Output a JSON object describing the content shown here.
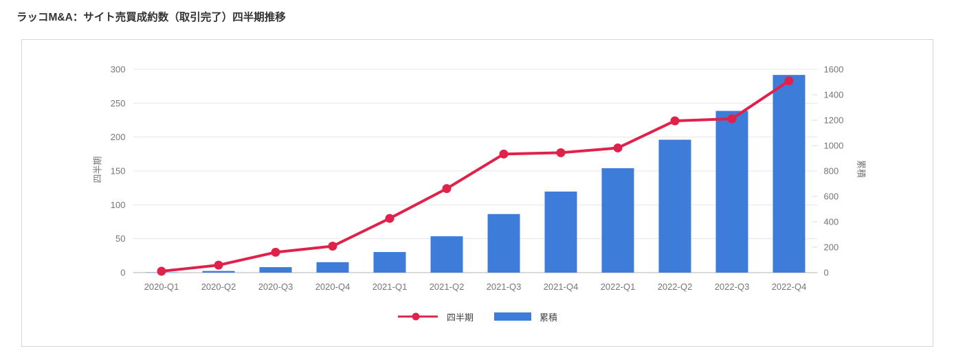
{
  "page": {
    "title": "ラッコM&A：サイト売買成約数（取引完了）四半期推移"
  },
  "chart_data": {
    "type": "combo",
    "title": "ラッコM&A：サイト売買成約数（取引完了）四半期推移",
    "categories": [
      "2020-Q1",
      "2020-Q2",
      "2020-Q3",
      "2020-Q4",
      "2021-Q1",
      "2021-Q2",
      "2021-Q3",
      "2021-Q4",
      "2022-Q1",
      "2022-Q2",
      "2022-Q3",
      "2022-Q4"
    ],
    "series": [
      {
        "name": "四半期",
        "type": "line",
        "axis": "left",
        "color": "#e0224b",
        "values": [
          2,
          11,
          30,
          39,
          80,
          124,
          175,
          177,
          184,
          224,
          227,
          283
        ]
      },
      {
        "name": "累積",
        "type": "bar",
        "axis": "right",
        "color": "#3d7cd9",
        "values": [
          2,
          13,
          43,
          82,
          162,
          286,
          461,
          638,
          822,
          1046,
          1273,
          1556
        ]
      }
    ],
    "left_axis": {
      "title": "四半期",
      "min": 0,
      "max": 300,
      "ticks": [
        0,
        50,
        100,
        150,
        200,
        250,
        300
      ]
    },
    "right_axis": {
      "title": "累積",
      "min": 0,
      "max": 1600,
      "ticks": [
        0,
        200,
        400,
        600,
        800,
        1000,
        1200,
        1400,
        1600
      ]
    },
    "legend": {
      "position": "bottom"
    },
    "grid": true
  }
}
